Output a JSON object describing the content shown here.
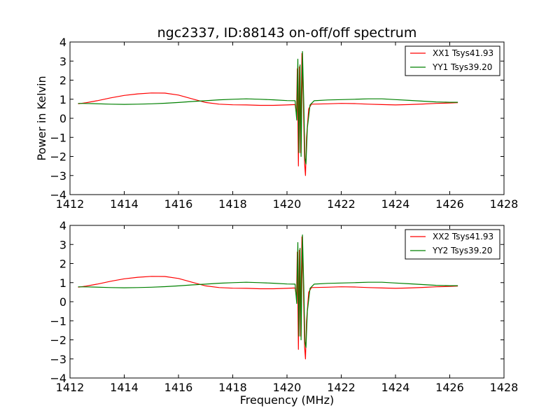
{
  "chart_data": {
    "type": "line",
    "title": "ngc2337, ID:88143 on-off/off spectrum",
    "xlabel": "Frequency (MHz)",
    "ylabel": "Power in Kelvin",
    "xlim": [
      1412,
      1428
    ],
    "x_ticks": [
      "1412",
      "1414",
      "1416",
      "1418",
      "1420",
      "1422",
      "1424",
      "1426",
      "1428"
    ],
    "ylim": [
      -4,
      4
    ],
    "y_ticks": [
      "−4",
      "−3",
      "−2",
      "−1",
      "0",
      "1",
      "2",
      "3",
      "4"
    ],
    "grid": false,
    "legend_position": "top-right",
    "colors": {
      "red": "#ff0000",
      "green": "#008000"
    },
    "panels": [
      {
        "id": "top",
        "series": [
          {
            "name": "XX1 Tsys41.93",
            "color": "#ff0000",
            "points": [
              [
                1412.3,
                0.76
              ],
              [
                1412.6,
                0.82
              ],
              [
                1413.0,
                0.92
              ],
              [
                1413.5,
                1.07
              ],
              [
                1414.0,
                1.2
              ],
              [
                1414.5,
                1.28
              ],
              [
                1415.0,
                1.33
              ],
              [
                1415.5,
                1.32
              ],
              [
                1416.0,
                1.22
              ],
              [
                1416.5,
                1.02
              ],
              [
                1417.0,
                0.83
              ],
              [
                1417.5,
                0.74
              ],
              [
                1418.0,
                0.71
              ],
              [
                1418.5,
                0.7
              ],
              [
                1419.0,
                0.68
              ],
              [
                1419.5,
                0.68
              ],
              [
                1420.0,
                0.7
              ],
              [
                1420.3,
                0.72
              ],
              [
                1420.35,
                0.2
              ],
              [
                1420.38,
                2.6
              ],
              [
                1420.42,
                -2.5
              ],
              [
                1420.46,
                2.7
              ],
              [
                1420.5,
                -1.8
              ],
              [
                1420.55,
                3.4
              ],
              [
                1420.6,
                1.2
              ],
              [
                1420.65,
                -2.4
              ],
              [
                1420.68,
                -3.0
              ],
              [
                1420.72,
                -1.0
              ],
              [
                1420.8,
                0.5
              ],
              [
                1420.9,
                0.74
              ],
              [
                1421.5,
                0.76
              ],
              [
                1422.0,
                0.78
              ],
              [
                1422.5,
                0.77
              ],
              [
                1423.0,
                0.74
              ],
              [
                1423.5,
                0.72
              ],
              [
                1424.0,
                0.7
              ],
              [
                1424.5,
                0.72
              ],
              [
                1425.0,
                0.75
              ],
              [
                1425.5,
                0.78
              ],
              [
                1426.0,
                0.8
              ],
              [
                1426.3,
                0.82
              ]
            ]
          },
          {
            "name": "YY1 Tsys39.20",
            "color": "#008000",
            "points": [
              [
                1412.3,
                0.78
              ],
              [
                1412.8,
                0.77
              ],
              [
                1413.5,
                0.74
              ],
              [
                1414.0,
                0.73
              ],
              [
                1414.5,
                0.74
              ],
              [
                1415.0,
                0.76
              ],
              [
                1415.5,
                0.79
              ],
              [
                1416.0,
                0.83
              ],
              [
                1416.5,
                0.88
              ],
              [
                1417.0,
                0.92
              ],
              [
                1417.5,
                0.97
              ],
              [
                1418.0,
                1.0
              ],
              [
                1418.5,
                1.02
              ],
              [
                1419.0,
                1.0
              ],
              [
                1419.5,
                0.97
              ],
              [
                1420.0,
                0.93
              ],
              [
                1420.3,
                0.92
              ],
              [
                1420.36,
                -0.1
              ],
              [
                1420.4,
                3.1
              ],
              [
                1420.44,
                -1.8
              ],
              [
                1420.48,
                2.8
              ],
              [
                1420.52,
                -2.0
              ],
              [
                1420.57,
                3.5
              ],
              [
                1420.62,
                0.8
              ],
              [
                1420.66,
                -2.1
              ],
              [
                1420.7,
                -2.4
              ],
              [
                1420.75,
                -0.5
              ],
              [
                1420.85,
                0.7
              ],
              [
                1421.0,
                0.92
              ],
              [
                1421.5,
                0.96
              ],
              [
                1422.0,
                0.98
              ],
              [
                1422.5,
                1.0
              ],
              [
                1423.0,
                1.02
              ],
              [
                1423.5,
                1.02
              ],
              [
                1424.0,
                0.98
              ],
              [
                1424.5,
                0.94
              ],
              [
                1425.0,
                0.9
              ],
              [
                1425.5,
                0.86
              ],
              [
                1426.0,
                0.84
              ],
              [
                1426.3,
                0.84
              ]
            ]
          }
        ]
      },
      {
        "id": "bottom",
        "series": [
          {
            "name": "XX2 Tsys41.93",
            "color": "#ff0000",
            "points": [
              [
                1412.3,
                0.76
              ],
              [
                1412.6,
                0.82
              ],
              [
                1413.0,
                0.92
              ],
              [
                1413.5,
                1.07
              ],
              [
                1414.0,
                1.2
              ],
              [
                1414.5,
                1.28
              ],
              [
                1415.0,
                1.33
              ],
              [
                1415.5,
                1.32
              ],
              [
                1416.0,
                1.22
              ],
              [
                1416.5,
                1.02
              ],
              [
                1417.0,
                0.83
              ],
              [
                1417.5,
                0.74
              ],
              [
                1418.0,
                0.71
              ],
              [
                1418.5,
                0.7
              ],
              [
                1419.0,
                0.68
              ],
              [
                1419.5,
                0.68
              ],
              [
                1420.0,
                0.7
              ],
              [
                1420.3,
                0.72
              ],
              [
                1420.35,
                0.2
              ],
              [
                1420.38,
                2.6
              ],
              [
                1420.42,
                -2.5
              ],
              [
                1420.46,
                2.7
              ],
              [
                1420.5,
                -1.8
              ],
              [
                1420.55,
                3.4
              ],
              [
                1420.6,
                1.2
              ],
              [
                1420.65,
                -2.4
              ],
              [
                1420.68,
                -3.0
              ],
              [
                1420.72,
                -1.0
              ],
              [
                1420.8,
                0.5
              ],
              [
                1420.9,
                0.74
              ],
              [
                1421.5,
                0.76
              ],
              [
                1422.0,
                0.78
              ],
              [
                1422.5,
                0.77
              ],
              [
                1423.0,
                0.74
              ],
              [
                1423.5,
                0.72
              ],
              [
                1424.0,
                0.7
              ],
              [
                1424.5,
                0.72
              ],
              [
                1425.0,
                0.75
              ],
              [
                1425.5,
                0.78
              ],
              [
                1426.0,
                0.8
              ],
              [
                1426.3,
                0.82
              ]
            ]
          },
          {
            "name": "YY2 Tsys39.20",
            "color": "#008000",
            "points": [
              [
                1412.3,
                0.78
              ],
              [
                1412.8,
                0.77
              ],
              [
                1413.5,
                0.74
              ],
              [
                1414.0,
                0.73
              ],
              [
                1414.5,
                0.74
              ],
              [
                1415.0,
                0.76
              ],
              [
                1415.5,
                0.79
              ],
              [
                1416.0,
                0.83
              ],
              [
                1416.5,
                0.88
              ],
              [
                1417.0,
                0.92
              ],
              [
                1417.5,
                0.97
              ],
              [
                1418.0,
                1.0
              ],
              [
                1418.5,
                1.02
              ],
              [
                1419.0,
                1.0
              ],
              [
                1419.5,
                0.97
              ],
              [
                1420.0,
                0.93
              ],
              [
                1420.3,
                0.92
              ],
              [
                1420.36,
                -0.1
              ],
              [
                1420.4,
                3.1
              ],
              [
                1420.44,
                -1.8
              ],
              [
                1420.48,
                2.8
              ],
              [
                1420.52,
                -2.0
              ],
              [
                1420.57,
                3.5
              ],
              [
                1420.62,
                0.8
              ],
              [
                1420.66,
                -2.1
              ],
              [
                1420.7,
                -2.4
              ],
              [
                1420.75,
                -0.5
              ],
              [
                1420.85,
                0.7
              ],
              [
                1421.0,
                0.92
              ],
              [
                1421.5,
                0.96
              ],
              [
                1422.0,
                0.98
              ],
              [
                1422.5,
                1.0
              ],
              [
                1423.0,
                1.02
              ],
              [
                1423.5,
                1.02
              ],
              [
                1424.0,
                0.98
              ],
              [
                1424.5,
                0.94
              ],
              [
                1425.0,
                0.9
              ],
              [
                1425.5,
                0.86
              ],
              [
                1426.0,
                0.84
              ],
              [
                1426.3,
                0.84
              ]
            ]
          }
        ]
      }
    ]
  }
}
